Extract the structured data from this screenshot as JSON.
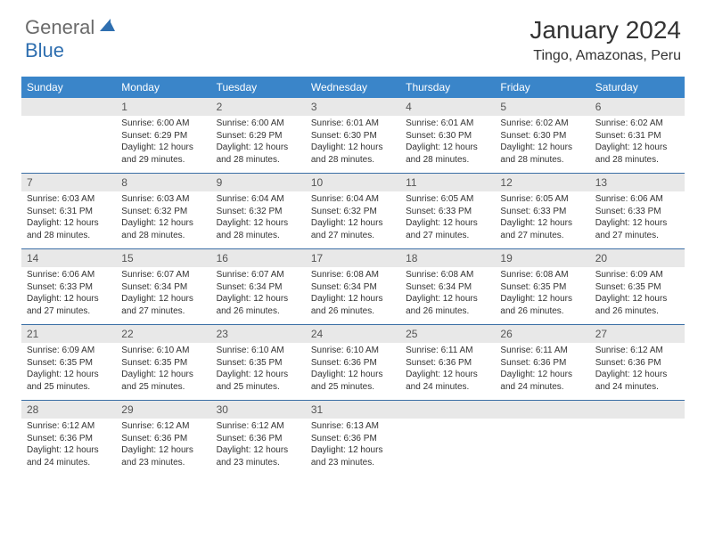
{
  "logo": {
    "part1": "General",
    "part2": "Blue"
  },
  "title": "January 2024",
  "location": "Tingo, Amazonas, Peru",
  "colors": {
    "header_bg": "#3a85c9",
    "header_text": "#ffffff",
    "daynum_bg": "#e8e8e8",
    "sep_border": "#3a6ea5",
    "logo_gray": "#6b6b6b",
    "logo_blue": "#2f6fb0"
  },
  "day_headers": [
    "Sunday",
    "Monday",
    "Tuesday",
    "Wednesday",
    "Thursday",
    "Friday",
    "Saturday"
  ],
  "weeks": [
    [
      {
        "n": "",
        "lines": []
      },
      {
        "n": "1",
        "lines": [
          "Sunrise: 6:00 AM",
          "Sunset: 6:29 PM",
          "Daylight: 12 hours and 29 minutes."
        ]
      },
      {
        "n": "2",
        "lines": [
          "Sunrise: 6:00 AM",
          "Sunset: 6:29 PM",
          "Daylight: 12 hours and 28 minutes."
        ]
      },
      {
        "n": "3",
        "lines": [
          "Sunrise: 6:01 AM",
          "Sunset: 6:30 PM",
          "Daylight: 12 hours and 28 minutes."
        ]
      },
      {
        "n": "4",
        "lines": [
          "Sunrise: 6:01 AM",
          "Sunset: 6:30 PM",
          "Daylight: 12 hours and 28 minutes."
        ]
      },
      {
        "n": "5",
        "lines": [
          "Sunrise: 6:02 AM",
          "Sunset: 6:30 PM",
          "Daylight: 12 hours and 28 minutes."
        ]
      },
      {
        "n": "6",
        "lines": [
          "Sunrise: 6:02 AM",
          "Sunset: 6:31 PM",
          "Daylight: 12 hours and 28 minutes."
        ]
      }
    ],
    [
      {
        "n": "7",
        "lines": [
          "Sunrise: 6:03 AM",
          "Sunset: 6:31 PM",
          "Daylight: 12 hours and 28 minutes."
        ]
      },
      {
        "n": "8",
        "lines": [
          "Sunrise: 6:03 AM",
          "Sunset: 6:32 PM",
          "Daylight: 12 hours and 28 minutes."
        ]
      },
      {
        "n": "9",
        "lines": [
          "Sunrise: 6:04 AM",
          "Sunset: 6:32 PM",
          "Daylight: 12 hours and 28 minutes."
        ]
      },
      {
        "n": "10",
        "lines": [
          "Sunrise: 6:04 AM",
          "Sunset: 6:32 PM",
          "Daylight: 12 hours and 27 minutes."
        ]
      },
      {
        "n": "11",
        "lines": [
          "Sunrise: 6:05 AM",
          "Sunset: 6:33 PM",
          "Daylight: 12 hours and 27 minutes."
        ]
      },
      {
        "n": "12",
        "lines": [
          "Sunrise: 6:05 AM",
          "Sunset: 6:33 PM",
          "Daylight: 12 hours and 27 minutes."
        ]
      },
      {
        "n": "13",
        "lines": [
          "Sunrise: 6:06 AM",
          "Sunset: 6:33 PM",
          "Daylight: 12 hours and 27 minutes."
        ]
      }
    ],
    [
      {
        "n": "14",
        "lines": [
          "Sunrise: 6:06 AM",
          "Sunset: 6:33 PM",
          "Daylight: 12 hours and 27 minutes."
        ]
      },
      {
        "n": "15",
        "lines": [
          "Sunrise: 6:07 AM",
          "Sunset: 6:34 PM",
          "Daylight: 12 hours and 27 minutes."
        ]
      },
      {
        "n": "16",
        "lines": [
          "Sunrise: 6:07 AM",
          "Sunset: 6:34 PM",
          "Daylight: 12 hours and 26 minutes."
        ]
      },
      {
        "n": "17",
        "lines": [
          "Sunrise: 6:08 AM",
          "Sunset: 6:34 PM",
          "Daylight: 12 hours and 26 minutes."
        ]
      },
      {
        "n": "18",
        "lines": [
          "Sunrise: 6:08 AM",
          "Sunset: 6:34 PM",
          "Daylight: 12 hours and 26 minutes."
        ]
      },
      {
        "n": "19",
        "lines": [
          "Sunrise: 6:08 AM",
          "Sunset: 6:35 PM",
          "Daylight: 12 hours and 26 minutes."
        ]
      },
      {
        "n": "20",
        "lines": [
          "Sunrise: 6:09 AM",
          "Sunset: 6:35 PM",
          "Daylight: 12 hours and 26 minutes."
        ]
      }
    ],
    [
      {
        "n": "21",
        "lines": [
          "Sunrise: 6:09 AM",
          "Sunset: 6:35 PM",
          "Daylight: 12 hours and 25 minutes."
        ]
      },
      {
        "n": "22",
        "lines": [
          "Sunrise: 6:10 AM",
          "Sunset: 6:35 PM",
          "Daylight: 12 hours and 25 minutes."
        ]
      },
      {
        "n": "23",
        "lines": [
          "Sunrise: 6:10 AM",
          "Sunset: 6:35 PM",
          "Daylight: 12 hours and 25 minutes."
        ]
      },
      {
        "n": "24",
        "lines": [
          "Sunrise: 6:10 AM",
          "Sunset: 6:36 PM",
          "Daylight: 12 hours and 25 minutes."
        ]
      },
      {
        "n": "25",
        "lines": [
          "Sunrise: 6:11 AM",
          "Sunset: 6:36 PM",
          "Daylight: 12 hours and 24 minutes."
        ]
      },
      {
        "n": "26",
        "lines": [
          "Sunrise: 6:11 AM",
          "Sunset: 6:36 PM",
          "Daylight: 12 hours and 24 minutes."
        ]
      },
      {
        "n": "27",
        "lines": [
          "Sunrise: 6:12 AM",
          "Sunset: 6:36 PM",
          "Daylight: 12 hours and 24 minutes."
        ]
      }
    ],
    [
      {
        "n": "28",
        "lines": [
          "Sunrise: 6:12 AM",
          "Sunset: 6:36 PM",
          "Daylight: 12 hours and 24 minutes."
        ]
      },
      {
        "n": "29",
        "lines": [
          "Sunrise: 6:12 AM",
          "Sunset: 6:36 PM",
          "Daylight: 12 hours and 23 minutes."
        ]
      },
      {
        "n": "30",
        "lines": [
          "Sunrise: 6:12 AM",
          "Sunset: 6:36 PM",
          "Daylight: 12 hours and 23 minutes."
        ]
      },
      {
        "n": "31",
        "lines": [
          "Sunrise: 6:13 AM",
          "Sunset: 6:36 PM",
          "Daylight: 12 hours and 23 minutes."
        ]
      },
      {
        "n": "",
        "lines": []
      },
      {
        "n": "",
        "lines": []
      },
      {
        "n": "",
        "lines": []
      }
    ]
  ]
}
